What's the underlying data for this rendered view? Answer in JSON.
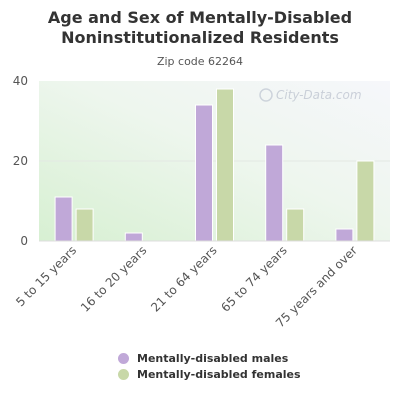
{
  "chart_data": {
    "type": "bar",
    "title": "Age and Sex of Mentally-Disabled Noninstitutionalized Residents",
    "subtitle": "Zip code 62264",
    "watermark": "City-Data.com",
    "categories": [
      "5 to 15 years",
      "16 to 20 years",
      "21 to 64 years",
      "65 to 74 years",
      "75 years and over"
    ],
    "series": [
      {
        "name": "Mentally-disabled males",
        "color": "#c0a8d8",
        "values": [
          11,
          2,
          34,
          24,
          3
        ]
      },
      {
        "name": "Mentally-disabled females",
        "color": "#c8d8a8",
        "values": [
          8,
          0,
          38,
          8,
          20
        ]
      }
    ],
    "yticks": [
      0,
      20,
      40
    ],
    "ylim": [
      0,
      40
    ],
    "grid": true,
    "legend_position": "bottom"
  }
}
